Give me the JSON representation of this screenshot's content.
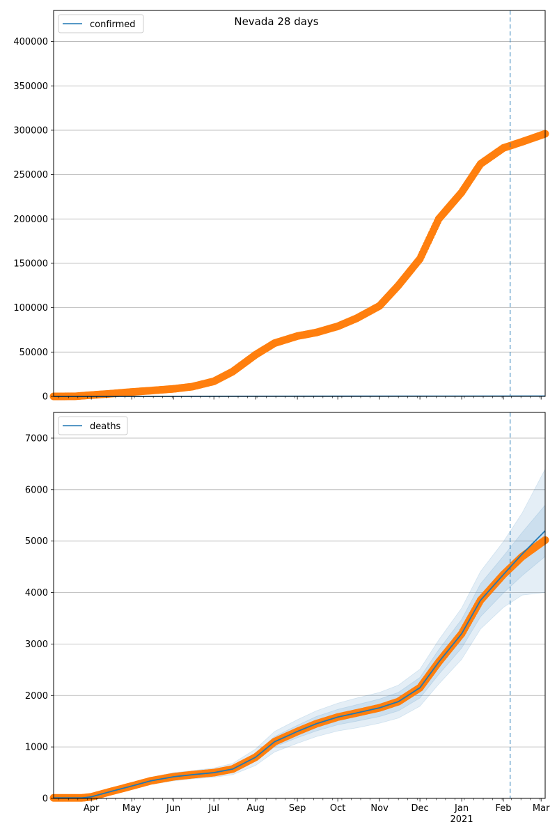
{
  "chart_data": [
    {
      "type": "line",
      "title": "Nevada 28 days",
      "legend": {
        "label": "confirmed",
        "placement": "top-left"
      },
      "ylim": [
        0,
        435000
      ],
      "yticks": [
        0,
        50000,
        100000,
        150000,
        200000,
        250000,
        300000,
        350000,
        400000
      ],
      "grid": "y",
      "xlim": [
        "2020-03-04",
        "2021-03-04"
      ],
      "forecast_start": "2021-02-06",
      "series": [
        {
          "kind": "observed-points",
          "color": "#ff7f0e",
          "points": [
            [
              "2020-03-04",
              0
            ],
            [
              "2020-03-20",
              100
            ],
            [
              "2020-04-01",
              1500
            ],
            [
              "2020-04-15",
              3000
            ],
            [
              "2020-05-01",
              5000
            ],
            [
              "2020-05-15",
              6500
            ],
            [
              "2020-06-01",
              8500
            ],
            [
              "2020-06-15",
              11000
            ],
            [
              "2020-07-01",
              17000
            ],
            [
              "2020-07-15",
              28000
            ],
            [
              "2020-08-01",
              47000
            ],
            [
              "2020-08-15",
              60000
            ],
            [
              "2020-09-01",
              68000
            ],
            [
              "2020-09-15",
              72000
            ],
            [
              "2020-10-01",
              79000
            ],
            [
              "2020-10-15",
              88000
            ],
            [
              "2020-11-01",
              102000
            ],
            [
              "2020-11-15",
              125000
            ],
            [
              "2020-12-01",
              155000
            ],
            [
              "2020-12-15",
              200000
            ],
            [
              "2021-01-01",
              230000
            ],
            [
              "2021-01-15",
              262000
            ],
            [
              "2021-02-01",
              280000
            ],
            [
              "2021-02-15",
              287000
            ],
            [
              "2021-03-04",
              296000
            ]
          ]
        },
        {
          "kind": "model-line",
          "color": "#1f77b4",
          "points": [
            [
              "2020-03-04",
              0
            ],
            [
              "2021-03-04",
              400
            ]
          ]
        }
      ]
    },
    {
      "type": "line",
      "legend": {
        "label": "deaths",
        "placement": "top-left"
      },
      "ylim": [
        0,
        7500
      ],
      "yticks": [
        0,
        1000,
        2000,
        3000,
        4000,
        5000,
        6000,
        7000
      ],
      "grid": "y",
      "xlim": [
        "2020-03-04",
        "2021-03-04"
      ],
      "xticks": [
        {
          "date": "2020-04-01",
          "label": "Apr"
        },
        {
          "date": "2020-05-01",
          "label": "May"
        },
        {
          "date": "2020-06-01",
          "label": "Jun"
        },
        {
          "date": "2020-07-01",
          "label": "Jul"
        },
        {
          "date": "2020-08-01",
          "label": "Aug"
        },
        {
          "date": "2020-09-01",
          "label": "Sep"
        },
        {
          "date": "2020-10-01",
          "label": "Oct"
        },
        {
          "date": "2020-11-01",
          "label": "Nov"
        },
        {
          "date": "2020-12-01",
          "label": "Dec"
        },
        {
          "date": "2021-01-01",
          "label": "Jan",
          "sublabel": "2021"
        },
        {
          "date": "2021-02-01",
          "label": "Feb"
        },
        {
          "date": "2021-03-01",
          "label": "Mar"
        }
      ],
      "forecast_start": "2021-02-06",
      "series": [
        {
          "kind": "observed-points",
          "color": "#ff7f0e",
          "points": [
            [
              "2020-03-04",
              10
            ],
            [
              "2020-03-25",
              10
            ],
            [
              "2020-04-01",
              30
            ],
            [
              "2020-04-15",
              130
            ],
            [
              "2020-05-01",
              240
            ],
            [
              "2020-05-15",
              340
            ],
            [
              "2020-06-01",
              420
            ],
            [
              "2020-06-15",
              460
            ],
            [
              "2020-07-01",
              500
            ],
            [
              "2020-07-15",
              570
            ],
            [
              "2020-08-01",
              800
            ],
            [
              "2020-08-15",
              1100
            ],
            [
              "2020-09-01",
              1300
            ],
            [
              "2020-09-15",
              1450
            ],
            [
              "2020-10-01",
              1580
            ],
            [
              "2020-10-15",
              1660
            ],
            [
              "2020-11-01",
              1760
            ],
            [
              "2020-11-15",
              1880
            ],
            [
              "2020-12-01",
              2150
            ],
            [
              "2020-12-15",
              2650
            ],
            [
              "2021-01-01",
              3200
            ],
            [
              "2021-01-15",
              3850
            ],
            [
              "2021-02-01",
              4350
            ],
            [
              "2021-02-15",
              4700
            ],
            [
              "2021-03-04",
              5020
            ]
          ]
        },
        {
          "kind": "model-line",
          "color": "#1f77b4",
          "points": [
            [
              "2020-03-04",
              10
            ],
            [
              "2020-03-25",
              10
            ],
            [
              "2020-04-01",
              30
            ],
            [
              "2020-04-15",
              130
            ],
            [
              "2020-05-01",
              240
            ],
            [
              "2020-05-15",
              340
            ],
            [
              "2020-06-01",
              420
            ],
            [
              "2020-06-15",
              460
            ],
            [
              "2020-07-01",
              500
            ],
            [
              "2020-07-15",
              570
            ],
            [
              "2020-08-01",
              800
            ],
            [
              "2020-08-15",
              1100
            ],
            [
              "2020-09-01",
              1300
            ],
            [
              "2020-09-15",
              1450
            ],
            [
              "2020-10-01",
              1580
            ],
            [
              "2020-10-15",
              1660
            ],
            [
              "2020-11-01",
              1760
            ],
            [
              "2020-11-15",
              1880
            ],
            [
              "2020-12-01",
              2150
            ],
            [
              "2020-12-15",
              2650
            ],
            [
              "2021-01-01",
              3200
            ],
            [
              "2021-01-15",
              3850
            ],
            [
              "2021-02-01",
              4350
            ],
            [
              "2021-02-15",
              4750
            ],
            [
              "2021-03-04",
              5200
            ]
          ]
        }
      ],
      "uncertainty_bands": [
        {
          "half_width": [
            0,
            0,
            5,
            20,
            30,
            40,
            40,
            40,
            50,
            60,
            80,
            100,
            120,
            140,
            150,
            160,
            170,
            180,
            200,
            240,
            280,
            320,
            360,
            420,
            500
          ]
        },
        {
          "half_width": [
            0,
            0,
            10,
            40,
            60,
            70,
            80,
            80,
            90,
            110,
            160,
            200,
            230,
            250,
            270,
            290,
            300,
            320,
            360,
            430,
            500,
            560,
            640,
            800,
            1200
          ]
        }
      ]
    }
  ]
}
